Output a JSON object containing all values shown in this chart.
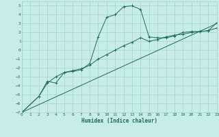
{
  "xlabel": "Humidex (Indice chaleur)",
  "xlim": [
    0,
    23
  ],
  "ylim": [
    -7,
    5.5
  ],
  "yticks": [
    -7,
    -6,
    -5,
    -4,
    -3,
    -2,
    -1,
    0,
    1,
    2,
    3,
    4,
    5
  ],
  "xticks": [
    0,
    1,
    2,
    3,
    4,
    5,
    6,
    7,
    8,
    9,
    10,
    11,
    12,
    13,
    14,
    15,
    16,
    17,
    18,
    19,
    20,
    21,
    22,
    23
  ],
  "bg_color": "#c8ece6",
  "grid_color": "#9fd4c8",
  "line_color": "#1a6b5a",
  "curve1_x": [
    0,
    2,
    3,
    4,
    5,
    6,
    7,
    8,
    9,
    10,
    11,
    12,
    13,
    14,
    15,
    16,
    17,
    18,
    19,
    20,
    21,
    22,
    23
  ],
  "curve1_y": [
    -7.0,
    -5.2,
    -3.5,
    -3.7,
    -2.5,
    -2.4,
    -2.2,
    -1.5,
    1.5,
    3.7,
    4.0,
    4.9,
    5.0,
    4.6,
    1.5,
    1.4,
    1.4,
    1.6,
    2.0,
    2.1,
    2.1,
    2.2,
    3.1
  ],
  "curve2_x": [
    0,
    2,
    3,
    4,
    5,
    6,
    7,
    8,
    9,
    10,
    11,
    12,
    13,
    14,
    15,
    16,
    17,
    18,
    19,
    20,
    21,
    22,
    23
  ],
  "curve2_y": [
    -7.0,
    -5.2,
    -3.7,
    -3.0,
    -2.5,
    -2.3,
    -2.1,
    -1.7,
    -1.0,
    -0.5,
    0.0,
    0.5,
    0.9,
    1.4,
    1.0,
    1.2,
    1.5,
    1.7,
    1.8,
    2.0,
    2.1,
    2.2,
    2.5
  ],
  "curve3_x": [
    0,
    23
  ],
  "curve3_y": [
    -7.0,
    3.0
  ]
}
